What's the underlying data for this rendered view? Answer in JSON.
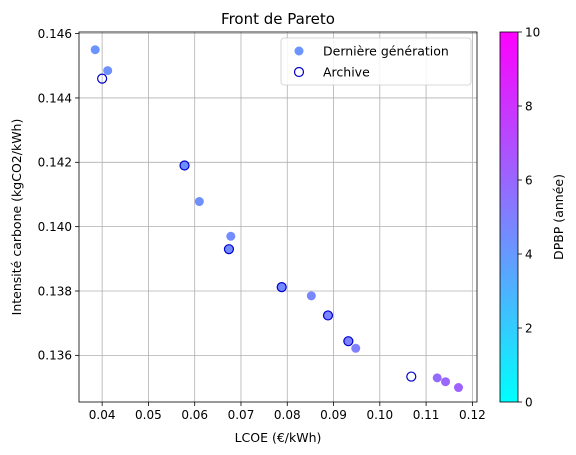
{
  "chart_data": {
    "type": "scatter",
    "title": "Front de Pareto",
    "xlabel": "LCOE (€/kWh)",
    "ylabel": "Intensité carbone (kgCO2/kWh)",
    "xlim": [
      0.035,
      0.121
    ],
    "ylim": [
      0.13455,
      0.14605
    ],
    "xticks": [
      0.04,
      0.05,
      0.06,
      0.07,
      0.08,
      0.09,
      0.1,
      0.11,
      0.12
    ],
    "xtick_labels": [
      "0.04",
      "0.05",
      "0.06",
      "0.07",
      "0.08",
      "0.09",
      "0.10",
      "0.11",
      "0.12"
    ],
    "yticks": [
      0.136,
      0.138,
      0.14,
      0.142,
      0.144,
      0.146
    ],
    "ytick_labels": [
      "0.136",
      "0.138",
      "0.140",
      "0.142",
      "0.144",
      "0.146"
    ],
    "grid": true,
    "legend_position": "top-right",
    "series": [
      {
        "name": "Dernière génération",
        "marker": "filled-circle",
        "x": [
          0.0385,
          0.0412,
          0.0578,
          0.061,
          0.0678,
          0.0674,
          0.0788,
          0.0852,
          0.0888,
          0.0932,
          0.0948,
          0.1124,
          0.1142,
          0.117
        ],
        "y": [
          0.1455,
          0.14485,
          0.1419,
          0.14078,
          0.1397,
          0.1393,
          0.13812,
          0.13785,
          0.13724,
          0.13644,
          0.13622,
          0.1353,
          0.13518,
          0.135
        ],
        "dpbp": [
          4.2,
          4.3,
          4.4,
          4.4,
          4.5,
          4.5,
          4.6,
          4.7,
          4.8,
          4.9,
          5.0,
          5.8,
          6.0,
          6.2
        ]
      },
      {
        "name": "Archive",
        "marker": "hollow-circle",
        "edge_color": "#0000cc",
        "x": [
          0.04,
          0.0578,
          0.0674,
          0.0788,
          0.0888,
          0.0932,
          0.1068
        ],
        "y": [
          0.1446,
          0.1419,
          0.1393,
          0.13812,
          0.13724,
          0.13644,
          0.13534
        ]
      }
    ],
    "colorbar": {
      "label": "DPBP (année)",
      "colormap": "cool",
      "min": 0,
      "max": 10,
      "ticks": [
        0,
        2,
        4,
        6,
        8,
        10
      ],
      "tick_labels": [
        "0",
        "2",
        "4",
        "6",
        "8",
        "10"
      ],
      "color_low": "#00ffff",
      "color_high": "#ff00ff"
    }
  }
}
